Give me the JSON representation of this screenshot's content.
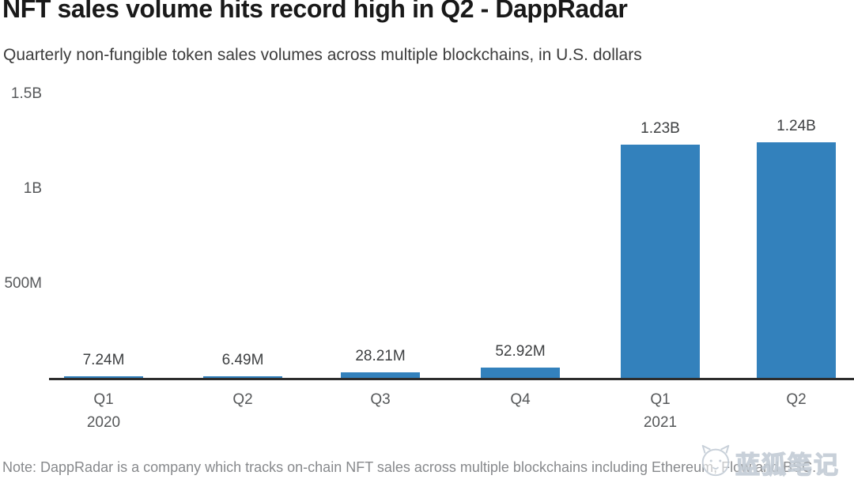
{
  "header": {
    "title": "NFT sales volume hits record high in Q2 - DappRadar",
    "subtitle": "Quarterly non-fungible token sales volumes across multiple blockchains, in U.S. dollars"
  },
  "chart_data": {
    "type": "bar",
    "title": "NFT sales volume hits record high in Q2 - DappRadar",
    "subtitle": "Quarterly non-fungible token sales volumes across multiple blockchains, in U.S. dollars",
    "unit": "U.S. dollars",
    "categories": [
      "Q1 2020",
      "Q2 2020",
      "Q3 2020",
      "Q4 2020",
      "Q1 2021",
      "Q2 2021"
    ],
    "x_ticks": [
      {
        "quarter": "Q1",
        "year": "2020"
      },
      {
        "quarter": "Q2",
        "year": ""
      },
      {
        "quarter": "Q3",
        "year": ""
      },
      {
        "quarter": "Q4",
        "year": ""
      },
      {
        "quarter": "Q1",
        "year": "2021"
      },
      {
        "quarter": "Q2",
        "year": ""
      }
    ],
    "values_million_usd": [
      7.24,
      6.49,
      28.21,
      52.92,
      1230,
      1240
    ],
    "value_labels": [
      "7.24M",
      "6.49M",
      "28.21M",
      "52.92M",
      "1.23B",
      "1.24B"
    ],
    "y_ticks": [
      {
        "label": "500M",
        "value_million": 500
      },
      {
        "label": "1B",
        "value_million": 1000
      },
      {
        "label": "1.5B",
        "value_million": 1500
      }
    ],
    "ylim_million": [
      0,
      1500
    ],
    "grid": false,
    "legend": null,
    "bar_color": "#3381bc",
    "axis_color": "#2d2d2d"
  },
  "footer": {
    "note": "Note: DappRadar is a company which tracks on-chain NFT sales across multiple blockchains including Ethereum, Flow and BSC."
  },
  "watermark": {
    "icon": "fox-logo",
    "text": "蓝狐笔记"
  }
}
